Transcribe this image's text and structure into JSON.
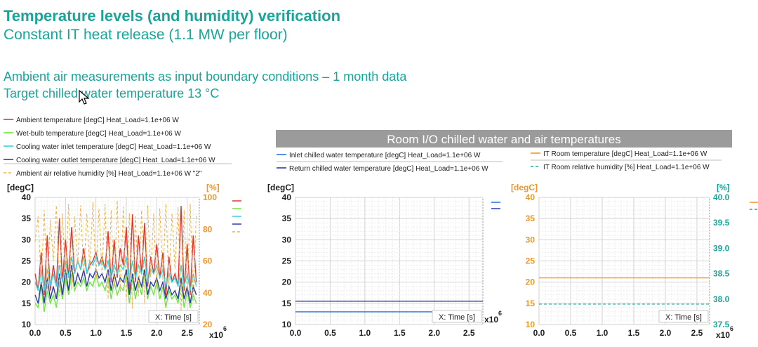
{
  "slide": {
    "title": "Temperature levels (and humidity) verification",
    "subtitle": "Constant IT heat release (1.1 MW per floor)",
    "line1": "Ambient air measurements as input boundary conditions – 1 month data",
    "line2": "Target chilled water temperature 13 °C"
  },
  "colors": {
    "teal": "#1aa59a",
    "orange": "#f0962a",
    "red": "#e8322e",
    "green": "#6ee83c",
    "cyan": "#34d4dc",
    "blue": "#2b6fd8",
    "navy": "#2e3aa8",
    "gray_banner": "#9b9b9b"
  },
  "chart_data": [
    {
      "type": "line",
      "legend": [
        {
          "name": "Ambient temperature [degC] Heat_Load=1.1e+06 W",
          "color": "#e8322e",
          "style": "solid"
        },
        {
          "name": "Wet-bulb temperature [degC] Heat_Load=1.1e+06 W",
          "color": "#6ee83c",
          "style": "solid"
        },
        {
          "name": "Cooling water inlet temperature [degC] Heat_Load=1.1e+06 W",
          "color": "#34d4dc",
          "style": "solid"
        },
        {
          "name": "Cooling water outlet temperature [degC] Heat_Load=1.1e+06 W",
          "color": "#2e3aa8",
          "style": "solid"
        },
        {
          "name": "Ambient air relative humidity [%] Heat_Load=1.1e+06 W \"2\"",
          "color": "#f0b040",
          "style": "dashed"
        }
      ],
      "ylabel_left": "[degC]",
      "ylabel_right": "[%]",
      "xlabel": "X: Time [s]",
      "x_exponent_label": "x10",
      "x_exponent": "6",
      "xlim": [
        0,
        2.7
      ],
      "ylim_left": [
        10,
        40
      ],
      "ylim_right": [
        20,
        100
      ],
      "xticks": [
        "0.0",
        "0.5",
        "1.0",
        "1.5",
        "2.0",
        "2.5"
      ],
      "yticks_left": [
        "10",
        "15",
        "20",
        "25",
        "30",
        "35",
        "40"
      ],
      "yticks_right": [
        "20",
        "40",
        "60",
        "80",
        "100"
      ],
      "grid": true,
      "series": [
        {
          "name": "Ambient temperature [degC] Heat_Load=1.1e+06 W",
          "axis": "left",
          "color": "#e8322e",
          "style": "solid",
          "x": [
            0,
            0.05,
            0.1,
            0.15,
            0.2,
            0.25,
            0.3,
            0.35,
            0.4,
            0.45,
            0.5,
            0.55,
            0.6,
            0.65,
            0.7,
            0.75,
            0.8,
            0.85,
            0.9,
            0.95,
            1.0,
            1.05,
            1.1,
            1.15,
            1.2,
            1.25,
            1.3,
            1.35,
            1.4,
            1.45,
            1.5,
            1.55,
            1.6,
            1.65,
            1.7,
            1.75,
            1.8,
            1.85,
            1.9,
            1.95,
            2.0,
            2.05,
            2.1,
            2.15,
            2.2,
            2.25,
            2.3,
            2.35,
            2.4,
            2.45,
            2.5,
            2.55,
            2.6,
            2.65
          ],
          "y": [
            22,
            18,
            27,
            17,
            31,
            18,
            24,
            19,
            35,
            20,
            30,
            21,
            33,
            22,
            25,
            23,
            28,
            22,
            24,
            25,
            27,
            24,
            26,
            23,
            32,
            20,
            30,
            21,
            28,
            24,
            33,
            18,
            36,
            20,
            31,
            22,
            34,
            19,
            26,
            22,
            29,
            21,
            27,
            17,
            26,
            20,
            22,
            19,
            38,
            18,
            29,
            17,
            31,
            20
          ]
        },
        {
          "name": "Wet-bulb temperature [degC] Heat_Load=1.1e+06 W",
          "axis": "left",
          "color": "#6ee83c",
          "style": "solid",
          "x": [
            0,
            0.05,
            0.1,
            0.15,
            0.2,
            0.25,
            0.3,
            0.35,
            0.4,
            0.45,
            0.5,
            0.55,
            0.6,
            0.65,
            0.7,
            0.75,
            0.8,
            0.85,
            0.9,
            0.95,
            1.0,
            1.05,
            1.1,
            1.15,
            1.2,
            1.25,
            1.3,
            1.35,
            1.4,
            1.45,
            1.5,
            1.55,
            1.6,
            1.65,
            1.7,
            1.75,
            1.8,
            1.85,
            1.9,
            1.95,
            2.0,
            2.05,
            2.1,
            2.15,
            2.2,
            2.25,
            2.3,
            2.35,
            2.4,
            2.45,
            2.5,
            2.55,
            2.6,
            2.65
          ],
          "y": [
            15,
            14,
            19,
            13,
            18,
            15,
            17,
            14,
            20,
            16,
            21,
            17,
            22,
            18,
            20,
            19,
            21,
            18,
            20,
            19,
            22,
            19,
            20,
            18,
            21,
            16,
            20,
            17,
            19,
            18,
            22,
            15,
            21,
            16,
            20,
            17,
            22,
            16,
            19,
            17,
            20,
            16,
            19,
            14,
            18,
            16,
            17,
            15,
            20,
            14,
            18,
            14,
            17,
            15
          ]
        },
        {
          "name": "Cooling water inlet temperature [degC] Heat_Load=1.1e+06 W",
          "axis": "left",
          "color": "#34d4dc",
          "style": "solid",
          "x": [
            0,
            0.05,
            0.1,
            0.15,
            0.2,
            0.25,
            0.3,
            0.35,
            0.4,
            0.45,
            0.5,
            0.55,
            0.6,
            0.65,
            0.7,
            0.75,
            0.8,
            0.85,
            0.9,
            0.95,
            1.0,
            1.05,
            1.1,
            1.15,
            1.2,
            1.25,
            1.3,
            1.35,
            1.4,
            1.45,
            1.5,
            1.55,
            1.6,
            1.65,
            1.7,
            1.75,
            1.8,
            1.85,
            1.9,
            1.95,
            2.0,
            2.05,
            2.1,
            2.15,
            2.2,
            2.25,
            2.3,
            2.35,
            2.4,
            2.45,
            2.5,
            2.55,
            2.6,
            2.65
          ],
          "y": [
            20,
            18,
            23,
            18,
            23,
            19,
            22,
            19,
            24,
            20,
            25,
            21,
            26,
            22,
            25,
            23,
            26,
            22,
            25,
            24,
            26,
            24,
            25,
            23,
            25,
            21,
            24,
            22,
            24,
            23,
            26,
            20,
            25,
            21,
            24,
            22,
            26,
            20,
            23,
            22,
            24,
            21,
            23,
            19,
            22,
            20,
            21,
            19,
            24,
            19,
            22,
            18,
            22,
            19
          ]
        },
        {
          "name": "Cooling water outlet temperature [degC] Heat_Load=1.1e+06 W",
          "axis": "left",
          "color": "#2e3aa8",
          "style": "solid",
          "x": [
            0,
            0.05,
            0.1,
            0.15,
            0.2,
            0.25,
            0.3,
            0.35,
            0.4,
            0.45,
            0.5,
            0.55,
            0.6,
            0.65,
            0.7,
            0.75,
            0.8,
            0.85,
            0.9,
            0.95,
            1.0,
            1.05,
            1.1,
            1.15,
            1.2,
            1.25,
            1.3,
            1.35,
            1.4,
            1.45,
            1.5,
            1.55,
            1.6,
            1.65,
            1.7,
            1.75,
            1.8,
            1.85,
            1.9,
            1.95,
            2.0,
            2.05,
            2.1,
            2.15,
            2.2,
            2.25,
            2.3,
            2.35,
            2.4,
            2.45,
            2.5,
            2.55,
            2.6,
            2.65
          ],
          "y": [
            17,
            15,
            20,
            15,
            21,
            16,
            19,
            16,
            22,
            17,
            23,
            18,
            24,
            19,
            22,
            20,
            23,
            19,
            22,
            21,
            23,
            21,
            22,
            20,
            23,
            18,
            22,
            19,
            21,
            20,
            23,
            17,
            22,
            18,
            21,
            19,
            23,
            17,
            20,
            19,
            21,
            18,
            20,
            16,
            19,
            17,
            18,
            16,
            21,
            16,
            19,
            15,
            19,
            17
          ]
        },
        {
          "name": "Ambient air relative humidity [%] Heat_Load=1.1e+06 W \"2\"",
          "axis": "right",
          "color": "#f0b040",
          "style": "dashed",
          "x": [
            0,
            0.05,
            0.1,
            0.15,
            0.2,
            0.25,
            0.3,
            0.35,
            0.4,
            0.45,
            0.5,
            0.55,
            0.6,
            0.65,
            0.7,
            0.75,
            0.8,
            0.85,
            0.9,
            0.95,
            1.0,
            1.05,
            1.1,
            1.15,
            1.2,
            1.25,
            1.3,
            1.35,
            1.4,
            1.45,
            1.5,
            1.55,
            1.6,
            1.65,
            1.7,
            1.75,
            1.8,
            1.85,
            1.9,
            1.95,
            2.0,
            2.05,
            2.1,
            2.15,
            2.2,
            2.25,
            2.3,
            2.35,
            2.4,
            2.45,
            2.5,
            2.55,
            2.6,
            2.65
          ],
          "y": [
            72,
            88,
            45,
            92,
            40,
            86,
            60,
            95,
            38,
            90,
            45,
            96,
            42,
            88,
            58,
            95,
            50,
            90,
            55,
            97,
            48,
            93,
            52,
            96,
            36,
            92,
            44,
            98,
            40,
            94,
            35,
            90,
            30,
            88,
            38,
            92,
            33,
            95,
            50,
            90,
            42,
            93,
            48,
            96,
            45,
            90,
            55,
            94,
            28,
            92,
            40,
            96,
            35,
            90
          ]
        }
      ]
    },
    {
      "type": "line",
      "title": "Room I/O chilled water and air temperatures",
      "legend": [
        {
          "name": "Inlet chilled water temperature [degC] Heat_Load=1.1e+06 W",
          "color": "#2b6fd8",
          "style": "solid"
        },
        {
          "name": "Return chilled water temperature [degC] Heat_Load=1.1e+06 W",
          "color": "#2e3aa8",
          "style": "solid"
        }
      ],
      "ylabel": "[degC]",
      "xlabel": "X: Time [s]",
      "x_exponent_label": "x10",
      "x_exponent": "6",
      "xlim": [
        0,
        2.7
      ],
      "ylim": [
        10,
        40
      ],
      "xticks": [
        "0.0",
        "0.5",
        "1.0",
        "1.5",
        "2.0",
        "2.5"
      ],
      "yticks": [
        "10",
        "15",
        "20",
        "25",
        "30",
        "35",
        "40"
      ],
      "grid": true,
      "series": [
        {
          "name": "Inlet chilled water temperature [degC] Heat_Load=1.1e+06 W",
          "color": "#2b6fd8",
          "style": "solid",
          "x": [
            0,
            2.0
          ],
          "y": [
            13,
            13
          ]
        },
        {
          "name": "Return chilled water temperature [degC] Heat_Load=1.1e+06 W",
          "color": "#2e3aa8",
          "style": "solid",
          "x": [
            0,
            2.7
          ],
          "y": [
            15.5,
            15.5
          ]
        }
      ]
    },
    {
      "type": "line",
      "legend": [
        {
          "name": "IT Room temperature [degC] Heat_Load=1.1e+06 W",
          "color": "#f0962a",
          "style": "solid"
        },
        {
          "name": "IT Room relative humidity [%] Heat_Load=1.1e+06 W",
          "color": "#1aa59a",
          "style": "dashed"
        }
      ],
      "ylabel_left": "[degC]",
      "ylabel_right": "[%]",
      "xlabel": "X: Time [s]",
      "x_exponent_label": "x10",
      "x_exponent": "6",
      "xlim": [
        0,
        2.7
      ],
      "ylim_left": [
        10,
        40
      ],
      "ylim_right": [
        37.5,
        40.0
      ],
      "xticks": [
        "0.0",
        "0.5",
        "1.0",
        "1.5",
        "2.0",
        "2.5"
      ],
      "yticks_left": [
        "10",
        "15",
        "20",
        "25",
        "30",
        "35",
        "40"
      ],
      "yticks_right": [
        "37.5",
        "38.0",
        "38.5",
        "39.0",
        "39.5",
        "40.0"
      ],
      "grid": true,
      "series": [
        {
          "name": "IT Room temperature [degC] Heat_Load=1.1e+06 W",
          "axis": "left",
          "color": "#f0962a",
          "style": "solid",
          "x": [
            0,
            2.7
          ],
          "y": [
            21,
            21
          ]
        },
        {
          "name": "IT Room relative humidity [%] Heat_Load=1.1e+06 W",
          "axis": "right",
          "color": "#1aa59a",
          "style": "dashed",
          "x": [
            0,
            2.7
          ],
          "y": [
            37.9,
            37.9
          ]
        }
      ]
    }
  ]
}
